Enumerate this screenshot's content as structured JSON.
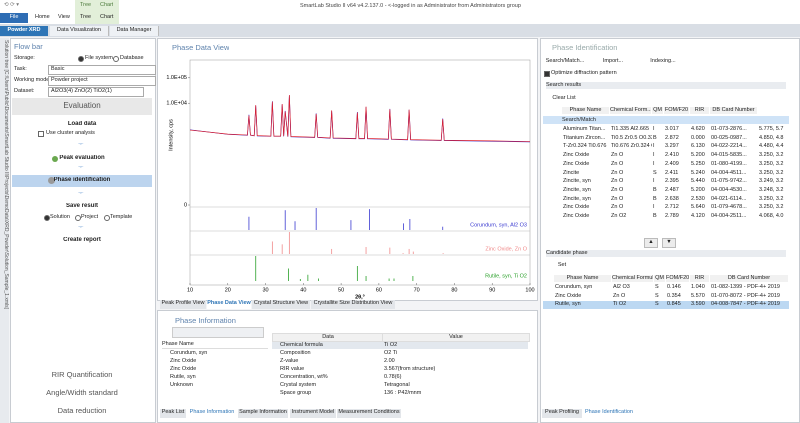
{
  "app": {
    "title": "SmartLab Studio II v64 v4.2.137.0 - <-logged in as Administrator from Administrators group",
    "file_button": "File",
    "ribbon_tabs": [
      "Home",
      "View"
    ],
    "context_group": [
      "Tree",
      "Chart"
    ],
    "context_tabs": [
      "Tree",
      "Chart"
    ]
  },
  "doc_tabs": [
    "Powder XRD",
    "Data Visualization",
    "Data Manager"
  ],
  "side_strip": "Solution tree [C:\\Users\\Public\\Documents\\SmartLab Studio II\\Projects\\DemoData\\XRD_Powder\\Solution_Sample_1.xmls]",
  "flow_bar": {
    "title": "Flow bar",
    "storage_label": "Storage:",
    "storage_options": [
      "File system",
      "Database"
    ],
    "task_label": "Task:",
    "task": "Basic",
    "mode_label": "Working mode:",
    "mode": "Powder project",
    "dataset_label": "Dataset:",
    "dataset": "Al2O3(4) ZnO(2) TiO2(1)",
    "section": "Evaluation",
    "steps": [
      "Load data",
      "Peak evaluation",
      "Phase identification",
      "Save result",
      "Create report"
    ],
    "cluster_option": "Use cluster analysis",
    "save_options": [
      "Solution",
      "Project",
      "Template"
    ],
    "bottom_buttons": [
      "RIR Quantification",
      "Angle/Width standard",
      "Data reduction"
    ]
  },
  "phase_data_view": {
    "title": "Phase Data View",
    "chart": {
      "type": "line",
      "y_label": "Intensity, cps",
      "x_label": "2θ,°",
      "y_scale": "log",
      "xlim": [
        10,
        100
      ],
      "xticks": [
        10,
        20,
        30,
        40,
        50,
        60,
        70,
        80,
        90,
        100
      ],
      "ylim": [
        0,
        500000
      ],
      "yticks": [
        {
          "value": 100000,
          "label": "1.0E+05"
        },
        {
          "value": 10000,
          "label": "1.0E+04"
        },
        0
      ],
      "x": [
        10,
        20,
        25.2,
        25.6,
        26,
        27,
        27.4,
        27.8,
        31.4,
        31.8,
        32.2,
        34,
        34.4,
        34.8,
        35.2,
        35.9,
        36.3,
        36.7,
        43,
        43.4,
        43.8,
        47.1,
        47.5,
        47.9,
        53.9,
        54.3,
        54.7,
        56.2,
        56.6,
        57,
        62.5,
        62.9,
        63.3,
        67.6,
        68,
        68.4,
        76.5,
        76.9,
        77.3,
        90,
        100
      ],
      "series": [
        {
          "color": "#2a2ad6",
          "values": [
            900,
            600,
            550,
            3500,
            550,
            520,
            8000,
            520,
            500,
            12000,
            500,
            500,
            9000,
            500,
            5000,
            480,
            20000,
            480,
            450,
            4000,
            450,
            420,
            5000,
            420,
            400,
            4500,
            400,
            400,
            7000,
            400,
            380,
            6000,
            380,
            360,
            5500,
            360,
            340,
            2500,
            340,
            320,
            300
          ]
        },
        {
          "color": "#e0202a",
          "values": [
            880,
            610,
            560,
            3300,
            560,
            530,
            8400,
            530,
            510,
            11500,
            510,
            510,
            9300,
            510,
            4700,
            490,
            21000,
            490,
            460,
            3800,
            460,
            430,
            5200,
            430,
            410,
            4300,
            410,
            410,
            7300,
            410,
            390,
            5800,
            390,
            370,
            5600,
            370,
            350,
            2400,
            350,
            330,
            310
          ]
        }
      ],
      "stick_ylim": [
        0,
        100
      ],
      "sticks": [
        {
          "label": "Corundum, syn, Al2 O3",
          "color": "#3a3ad0",
          "x": [
            25.6,
            35.2,
            37.8,
            43.4,
            52.6,
            57.5,
            66.5,
            68.2,
            76.9
          ],
          "values": [
            60,
            90,
            40,
            100,
            45,
            95,
            30,
            50,
            15
          ]
        },
        {
          "label": "Zinc Oxide, Zn O",
          "color": "#f08a8a",
          "x": [
            31.8,
            34.4,
            36.3,
            47.5,
            56.6,
            62.9,
            66.4,
            68.0,
            69.1,
            77.0
          ],
          "values": [
            57,
            44,
            100,
            23,
            32,
            29,
            4,
            23,
            11,
            4
          ]
        },
        {
          "label": "Rutile, syn, Ti O2",
          "color": "#2aa02a",
          "x": [
            27.4,
            36.1,
            39.2,
            41.2,
            44.0,
            54.3,
            56.6,
            62.7,
            64.0,
            69.0
          ],
          "values": [
            100,
            50,
            8,
            25,
            10,
            60,
            20,
            10,
            10,
            20
          ]
        }
      ]
    },
    "tabs": [
      "Peak Profile View",
      "Phase Data View",
      "Crystal Structure View",
      "Crystallite Size Distribution View"
    ]
  },
  "phase_information": {
    "title": "Phase Information",
    "list_header": "Phase Name",
    "phases": [
      "Corundum, syn",
      "Zinc Oxide",
      "Zinc Oxide",
      "Rutile, syn",
      "Unknown"
    ],
    "table_headers": [
      "Data",
      "Value"
    ],
    "rows": [
      [
        "Chemical formula",
        "Ti O2"
      ],
      [
        "Composition",
        "O2 Ti"
      ],
      [
        "Z-value",
        "2.00"
      ],
      [
        "RIR value",
        "3.567(from structure)"
      ],
      [
        "Concentration, wt%",
        "0.78(6)"
      ],
      [
        "Crystal system",
        "Tetragonal"
      ],
      [
        "Space group",
        "136 : P42/mnm"
      ]
    ]
  },
  "center_bottom_tabs": [
    "Peak List",
    "Phase Information",
    "Sample Information",
    "Instrument Model",
    "Measurement Conditions"
  ],
  "phase_identification": {
    "title": "Phase Identification",
    "buttons": [
      "Search/Match...",
      "Import...",
      "Indexing..."
    ],
    "optimize_option": "Optimize diffraction pattern",
    "search_results_label": "Search results",
    "clear_button": "Clear List",
    "group": "Search/Match",
    "headers": [
      "Phase Name",
      "Chemical Form...",
      "QM",
      "FOM/F20",
      "RIR",
      "DB Card Number"
    ],
    "rows": [
      [
        "Aluminum Titan...",
        "Ti1.335 Al2.665",
        "I",
        "3.017",
        "4.620",
        "01-073-2876...",
        "5.775, 5.7"
      ],
      [
        "Titanium Zircon...",
        "Ti0.5 Zr0.5 O0.33",
        "B",
        "2.872",
        "0.000",
        "00-025-0987...",
        "4.850, 4.8"
      ],
      [
        "T-Zr0.324 Ti0.676",
        "Ti0.676 Zr0.324 O2",
        "I",
        "3.297",
        "6.130",
        "04-022-2214...",
        "4.480, 4.4"
      ],
      [
        "Zinc Oxide",
        "Zn O",
        "I",
        "2.410",
        "5.200",
        "04-015-5835...",
        "3.250, 3.2"
      ],
      [
        "Zinc Oxide",
        "Zn O",
        "I",
        "2.409",
        "5.250",
        "01-080-4199...",
        "3.250, 3.2"
      ],
      [
        "Zincite",
        "Zn O",
        "S",
        "2.411",
        "5.240",
        "04-004-4511...",
        "3.250, 3.2"
      ],
      [
        "Zincite, syn",
        "Zn O",
        "I",
        "2.395",
        "5.440",
        "01-075-9742...",
        "3.249, 3.2"
      ],
      [
        "Zincite, syn",
        "Zn O",
        "B",
        "2.487",
        "5.200",
        "04-004-4530...",
        "3.248, 3.2"
      ],
      [
        "Zincite, syn",
        "Zn O",
        "B",
        "2.638",
        "2.530",
        "04-021-6114...",
        "3.250, 3.2"
      ],
      [
        "Zinc Oxide",
        "Zn O",
        "I",
        "2.712",
        "5.640",
        "01-079-4678...",
        "3.250, 3.2"
      ],
      [
        "Zinc Oxide",
        "Zn O2",
        "B",
        "2.789",
        "4.120",
        "04-004-2511...",
        "4.068, 4.0"
      ]
    ],
    "candidate_label": "Candidate phase",
    "set_button": "Set",
    "candidate_headers": [
      "Phase Name",
      "Chemical Formula",
      "QM",
      "FOM/F20",
      "RIR",
      "DB Card Number"
    ],
    "candidates": [
      [
        "Corundum, syn",
        "Al2 O3",
        "S",
        "0.146",
        "1.040",
        "01-082-1399 - PDF-4+ 2019"
      ],
      [
        "Zinc Oxide",
        "Zn O",
        "S",
        "0.354",
        "5.570",
        "01-070-8072 - PDF-4+ 2019"
      ],
      [
        "Rutile, syn",
        "Ti O2",
        "S",
        "0.845",
        "3.590",
        "04-008-7847 - PDF-4+ 2019"
      ]
    ],
    "bottom_tabs": [
      "Peak Profiling",
      "Phase Identification"
    ]
  }
}
